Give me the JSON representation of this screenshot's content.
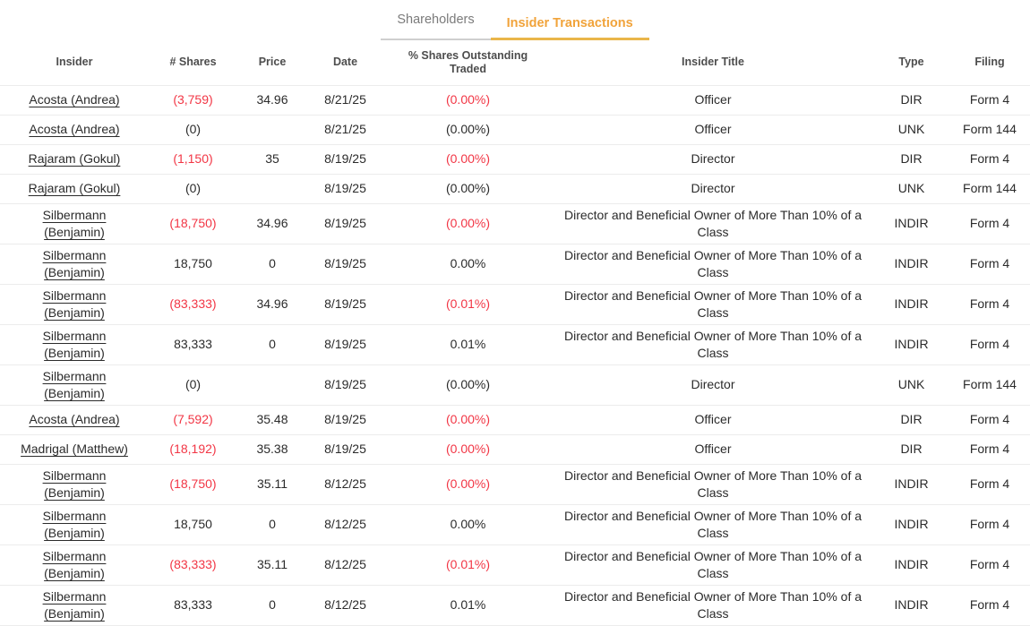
{
  "tabs": [
    {
      "label": "Shareholders",
      "active": false
    },
    {
      "label": "Insider Transactions",
      "active": true
    }
  ],
  "colors": {
    "accent_orange": "#f1a33a",
    "tab_underline_orange": "#e9b64a",
    "inactive_tab_gray": "#7b7b7b",
    "negative_red": "#f23645",
    "text": "#2b2b2b",
    "row_border": "#ececec"
  },
  "table": {
    "columns": [
      {
        "id": "insider",
        "label": "Insider"
      },
      {
        "id": "shares",
        "label": "# Shares"
      },
      {
        "id": "price",
        "label": "Price"
      },
      {
        "id": "date",
        "label": "Date"
      },
      {
        "id": "pct",
        "label": "% Shares Outstanding Traded"
      },
      {
        "id": "title",
        "label": "Insider Title"
      },
      {
        "id": "type",
        "label": "Type"
      },
      {
        "id": "filing",
        "label": "Filing"
      }
    ],
    "rows": [
      {
        "insider": "Acosta (Andrea)",
        "shares": "(3,759)",
        "shares_neg": true,
        "price": "34.96",
        "date": "8/21/25",
        "pct": "(0.00%)",
        "pct_neg": true,
        "title": "Officer",
        "type": "DIR",
        "filing": "Form 4"
      },
      {
        "insider": "Acosta (Andrea)",
        "shares": "(0)",
        "shares_neg": false,
        "price": "",
        "date": "8/21/25",
        "pct": "(0.00%)",
        "pct_neg": false,
        "title": "Officer",
        "type": "UNK",
        "filing": "Form 144"
      },
      {
        "insider": "Rajaram (Gokul)",
        "shares": "(1,150)",
        "shares_neg": true,
        "price": "35",
        "date": "8/19/25",
        "pct": "(0.00%)",
        "pct_neg": true,
        "title": "Director",
        "type": "DIR",
        "filing": "Form 4"
      },
      {
        "insider": "Rajaram (Gokul)",
        "shares": "(0)",
        "shares_neg": false,
        "price": "",
        "date": "8/19/25",
        "pct": "(0.00%)",
        "pct_neg": false,
        "title": "Director",
        "type": "UNK",
        "filing": "Form 144"
      },
      {
        "insider": "Silbermann (Benjamin)",
        "shares": "(18,750)",
        "shares_neg": true,
        "price": "34.96",
        "date": "8/19/25",
        "pct": "(0.00%)",
        "pct_neg": true,
        "title": "Director and Beneficial Owner of More Than 10% of a Class",
        "type": "INDIR",
        "filing": "Form 4"
      },
      {
        "insider": "Silbermann (Benjamin)",
        "shares": "18,750",
        "shares_neg": false,
        "price": "0",
        "date": "8/19/25",
        "pct": "0.00%",
        "pct_neg": false,
        "title": "Director and Beneficial Owner of More Than 10% of a Class",
        "type": "INDIR",
        "filing": "Form 4"
      },
      {
        "insider": "Silbermann (Benjamin)",
        "shares": "(83,333)",
        "shares_neg": true,
        "price": "34.96",
        "date": "8/19/25",
        "pct": "(0.01%)",
        "pct_neg": true,
        "title": "Director and Beneficial Owner of More Than 10% of a Class",
        "type": "INDIR",
        "filing": "Form 4"
      },
      {
        "insider": "Silbermann (Benjamin)",
        "shares": "83,333",
        "shares_neg": false,
        "price": "0",
        "date": "8/19/25",
        "pct": "0.01%",
        "pct_neg": false,
        "title": "Director and Beneficial Owner of More Than 10% of a Class",
        "type": "INDIR",
        "filing": "Form 4"
      },
      {
        "insider": "Silbermann (Benjamin)",
        "shares": "(0)",
        "shares_neg": false,
        "price": "",
        "date": "8/19/25",
        "pct": "(0.00%)",
        "pct_neg": false,
        "title": "Director",
        "type": "UNK",
        "filing": "Form 144"
      },
      {
        "insider": "Acosta (Andrea)",
        "shares": "(7,592)",
        "shares_neg": true,
        "price": "35.48",
        "date": "8/19/25",
        "pct": "(0.00%)",
        "pct_neg": true,
        "title": "Officer",
        "type": "DIR",
        "filing": "Form 4"
      },
      {
        "insider": "Madrigal (Matthew)",
        "shares": "(18,192)",
        "shares_neg": true,
        "price": "35.38",
        "date": "8/19/25",
        "pct": "(0.00%)",
        "pct_neg": true,
        "title": "Officer",
        "type": "DIR",
        "filing": "Form 4"
      },
      {
        "insider": "Silbermann (Benjamin)",
        "shares": "(18,750)",
        "shares_neg": true,
        "price": "35.11",
        "date": "8/12/25",
        "pct": "(0.00%)",
        "pct_neg": true,
        "title": "Director and Beneficial Owner of More Than 10% of a Class",
        "type": "INDIR",
        "filing": "Form 4"
      },
      {
        "insider": "Silbermann (Benjamin)",
        "shares": "18,750",
        "shares_neg": false,
        "price": "0",
        "date": "8/12/25",
        "pct": "0.00%",
        "pct_neg": false,
        "title": "Director and Beneficial Owner of More Than 10% of a Class",
        "type": "INDIR",
        "filing": "Form 4"
      },
      {
        "insider": "Silbermann (Benjamin)",
        "shares": "(83,333)",
        "shares_neg": true,
        "price": "35.11",
        "date": "8/12/25",
        "pct": "(0.01%)",
        "pct_neg": true,
        "title": "Director and Beneficial Owner of More Than 10% of a Class",
        "type": "INDIR",
        "filing": "Form 4"
      },
      {
        "insider": "Silbermann (Benjamin)",
        "shares": "83,333",
        "shares_neg": false,
        "price": "0",
        "date": "8/12/25",
        "pct": "0.01%",
        "pct_neg": false,
        "title": "Director and Beneficial Owner of More Than 10% of a Class",
        "type": "INDIR",
        "filing": "Form 4"
      }
    ]
  }
}
